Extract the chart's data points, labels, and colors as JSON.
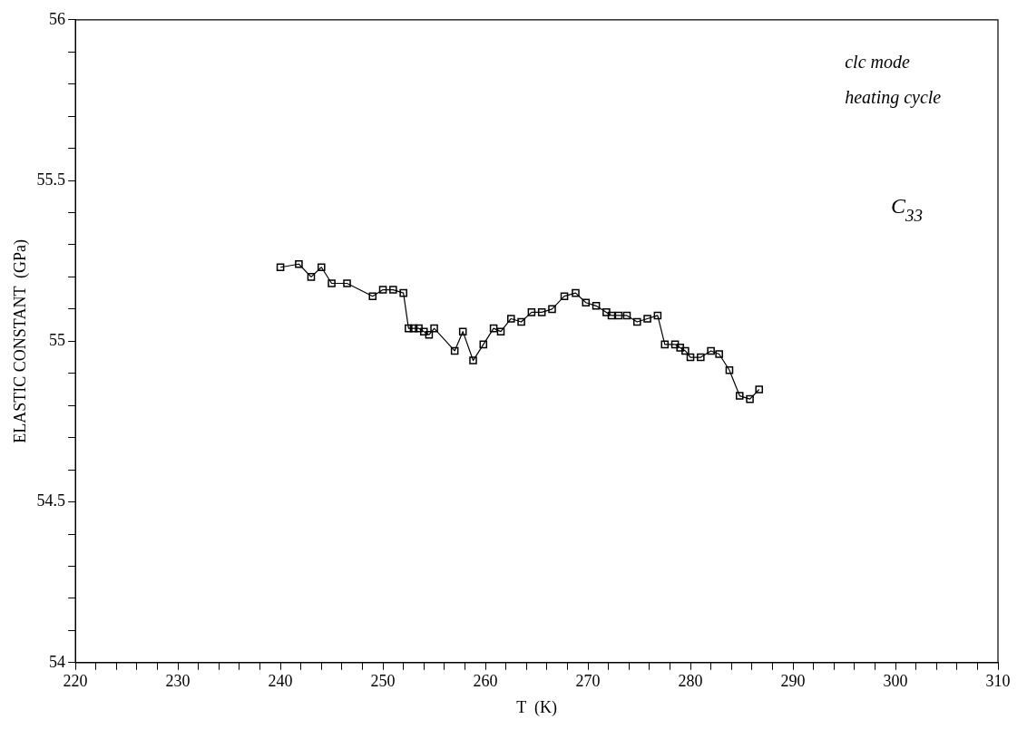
{
  "chart_data": {
    "type": "line",
    "xlabel": "T  (K)",
    "ylabel": "ELASTIC CONSTANT  (GPa)",
    "annotations": [
      "clc mode",
      "heating cycle",
      "C$_{33}$"
    ],
    "marker": "square",
    "line_style": "solid",
    "grid": false,
    "legend": false,
    "xlim": [
      220,
      310
    ],
    "ylim": [
      54,
      56
    ],
    "xticks": [
      220,
      {
        "value": 222,
        "label": null
      },
      {
        "value": 224,
        "label": null
      },
      {
        "value": 226,
        "label": null
      },
      {
        "value": 228,
        "label": null
      },
      230,
      {
        "value": 232,
        "label": null
      },
      {
        "value": 234,
        "label": null
      },
      {
        "value": 236,
        "label": null
      },
      {
        "value": 238,
        "label": null
      },
      240,
      {
        "value": 242,
        "label": null
      },
      {
        "value": 244,
        "label": null
      },
      {
        "value": 246,
        "label": null
      },
      {
        "value": 248,
        "label": null
      },
      250,
      {
        "value": 252,
        "label": null
      },
      {
        "value": 254,
        "label": null
      },
      {
        "value": 256,
        "label": null
      },
      {
        "value": 258,
        "label": null
      },
      260,
      {
        "value": 262,
        "label": null
      },
      {
        "value": 264,
        "label": null
      },
      {
        "value": 266,
        "label": null
      },
      {
        "value": 268,
        "label": null
      },
      270,
      {
        "value": 272,
        "label": null
      },
      {
        "value": 274,
        "label": null
      },
      {
        "value": 276,
        "label": null
      },
      {
        "value": 278,
        "label": null
      },
      280,
      {
        "value": 282,
        "label": null
      },
      {
        "value": 284,
        "label": null
      },
      {
        "value": 286,
        "label": null
      },
      {
        "value": 288,
        "label": null
      },
      290,
      {
        "value": 292,
        "label": null
      },
      {
        "value": 294,
        "label": null
      },
      {
        "value": 296,
        "label": null
      },
      {
        "value": 298,
        "label": null
      },
      300,
      {
        "value": 302,
        "label": null
      },
      {
        "value": 304,
        "label": null
      },
      {
        "value": 306,
        "label": null
      },
      {
        "value": 308,
        "label": null
      },
      310
    ],
    "yticks": [
      54,
      {
        "value": 54.1,
        "label": null
      },
      {
        "value": 54.2,
        "label": null
      },
      {
        "value": 54.3,
        "label": null
      },
      {
        "value": 54.4,
        "label": null
      },
      54.5,
      {
        "value": 54.6,
        "label": null
      },
      {
        "value": 54.7,
        "label": null
      },
      {
        "value": 54.8,
        "label": null
      },
      {
        "value": 54.9,
        "label": null
      },
      55,
      {
        "value": 55.1,
        "label": null
      },
      {
        "value": 55.2,
        "label": null
      },
      {
        "value": 55.3,
        "label": null
      },
      {
        "value": 55.4,
        "label": null
      },
      55.5,
      {
        "value": 55.6,
        "label": null
      },
      {
        "value": 55.7,
        "label": null
      },
      {
        "value": 55.8,
        "label": null
      },
      {
        "value": 55.9,
        "label": null
      },
      56
    ],
    "x": [
      240,
      241.8,
      243,
      244,
      245,
      246.5,
      249,
      250,
      251,
      252,
      252.5,
      253,
      253.5,
      254,
      254.5,
      255,
      257,
      257.8,
      258.8,
      259.8,
      260.8,
      261.5,
      262.5,
      263.5,
      264.5,
      265.5,
      266.5,
      267.7,
      268.8,
      269.8,
      270.8,
      271.8,
      272.3,
      273,
      273.8,
      274.8,
      275.8,
      276.8,
      277.5,
      278.5,
      279,
      279.5,
      280,
      281,
      282,
      282.8,
      283.8,
      284.8,
      285.8,
      286.7
    ],
    "series": [
      {
        "color": "#000000",
        "values": [
          55.23,
          55.24,
          55.2,
          55.23,
          55.18,
          55.18,
          55.14,
          55.16,
          55.16,
          55.15,
          55.04,
          55.04,
          55.04,
          55.03,
          55.02,
          55.04,
          54.97,
          55.03,
          54.94,
          54.99,
          55.04,
          55.03,
          55.07,
          55.06,
          55.09,
          55.09,
          55.1,
          55.14,
          55.15,
          55.12,
          55.11,
          55.09,
          55.08,
          55.08,
          55.08,
          55.06,
          55.07,
          55.08,
          54.99,
          54.99,
          54.98,
          54.97,
          54.95,
          54.95,
          54.97,
          54.96,
          54.91,
          54.83,
          54.82,
          54.85
        ]
      }
    ]
  }
}
